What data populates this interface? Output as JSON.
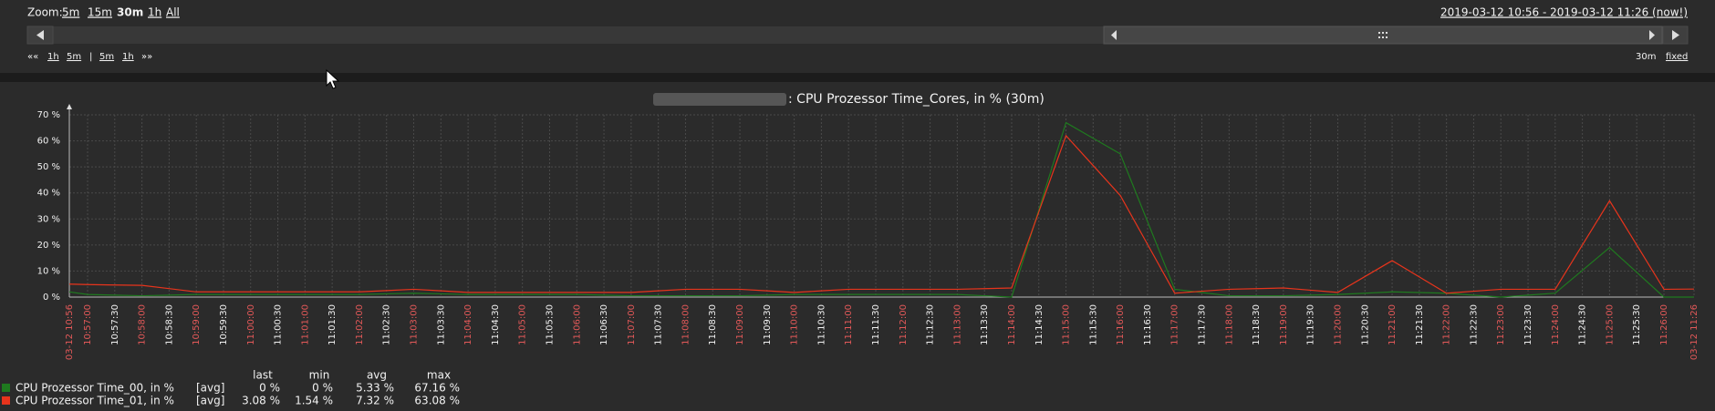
{
  "zoom": {
    "label": "Zoom:",
    "options": [
      "5m",
      "15m",
      "30m",
      "1h",
      "All"
    ],
    "active": "30m"
  },
  "time_range": "2019-03-12 10:56 - 2019-03-12 11:26 (now!)",
  "nav": {
    "left": [
      "««",
      "1h",
      "5m",
      "|",
      "5m",
      "1h",
      "»»"
    ],
    "period": "30m",
    "mode": "fixed"
  },
  "chart_data": {
    "type": "line",
    "title": ": CPU Prozessor Time_Cores, in % (30m)",
    "categories": [
      "03-12 10:56",
      "10:57:00",
      "10:57:30",
      "10:58:00",
      "10:58:30",
      "10:59:00",
      "10:59:30",
      "11:00:00",
      "11:00:30",
      "11:01:00",
      "11:01:30",
      "11:02:00",
      "11:02:30",
      "11:03:00",
      "11:03:30",
      "11:04:00",
      "11:04:30",
      "11:05:00",
      "11:05:30",
      "11:06:00",
      "11:06:30",
      "11:07:00",
      "11:07:30",
      "11:08:00",
      "11:08:30",
      "11:09:00",
      "11:09:30",
      "11:10:00",
      "11:10:30",
      "11:11:00",
      "11:11:30",
      "11:12:00",
      "11:12:30",
      "11:13:00",
      "11:13:30",
      "11:14:00",
      "11:14:30",
      "11:15:00",
      "11:15:30",
      "11:16:00",
      "11:16:30",
      "11:17:00",
      "11:17:30",
      "11:18:00",
      "11:18:30",
      "11:19:00",
      "11:19:30",
      "11:20:00",
      "11:20:30",
      "11:21:00",
      "11:21:30",
      "11:22:00",
      "11:22:30",
      "11:23:00",
      "11:23:30",
      "11:24:00",
      "11:24:30",
      "11:25:00",
      "11:25:30",
      "11:26:00",
      "03-12 11:26"
    ],
    "series": [
      {
        "name": "CPU Prozessor Time_00, in %",
        "color": "#1f7a1f",
        "values": [
          2,
          1,
          0.75,
          0.5,
          0.75,
          1,
          1,
          1,
          1,
          1,
          1,
          1,
          1.25,
          1.5,
          1.25,
          1,
          1,
          1,
          1,
          1,
          0.75,
          0.5,
          0.5,
          0.5,
          0.5,
          0.5,
          0.75,
          1,
          1,
          1,
          1,
          1,
          1,
          1,
          0.5,
          0,
          33.5,
          67,
          61,
          55,
          29,
          3,
          1.75,
          0.5,
          0.5,
          0.5,
          0.75,
          1,
          1.5,
          2,
          1.75,
          1.5,
          0.75,
          0,
          0.75,
          1.5,
          10.25,
          19,
          9.5,
          0,
          0
        ]
      },
      {
        "name": "CPU Prozessor Time_01, in %",
        "color": "#e8341c",
        "values": [
          5,
          4.8,
          4.65,
          4.5,
          3.25,
          2,
          2,
          2,
          2,
          2,
          2,
          2,
          2.5,
          3,
          2.4,
          1.8,
          1.8,
          1.8,
          1.8,
          1.8,
          1.8,
          1.8,
          2.4,
          3,
          3,
          3,
          2.4,
          1.8,
          2.4,
          3,
          3,
          3,
          3,
          3,
          3.25,
          3.5,
          32.75,
          62,
          50.5,
          39,
          20.25,
          1.5,
          2.25,
          3,
          3.25,
          3.5,
          2.65,
          1.8,
          7.9,
          14,
          7.75,
          1.5,
          2.25,
          3,
          3,
          3,
          20,
          37,
          20,
          3,
          3.08
        ]
      }
    ],
    "ylim": [
      0,
      70
    ],
    "yticks": [
      {
        "value": 0,
        "label": "0 %"
      },
      {
        "value": 10,
        "label": "10 %"
      },
      {
        "value": 20,
        "label": "20 %"
      },
      {
        "value": 30,
        "label": "30 %"
      },
      {
        "value": 40,
        "label": "40 %"
      },
      {
        "value": 50,
        "label": "50 %"
      },
      {
        "value": 60,
        "label": "60 %"
      },
      {
        "value": 70,
        "label": "70 %"
      }
    ],
    "grid": true
  },
  "legend": {
    "header": [
      "last",
      "min",
      "avg",
      "max"
    ],
    "rows": [
      [
        "[avg]",
        "0 %",
        "0 %",
        "5.33 %",
        "67.16 %"
      ],
      [
        "[avg]",
        "3.08 %",
        "1.54 %",
        "7.32 %",
        "63.08 %"
      ]
    ]
  }
}
